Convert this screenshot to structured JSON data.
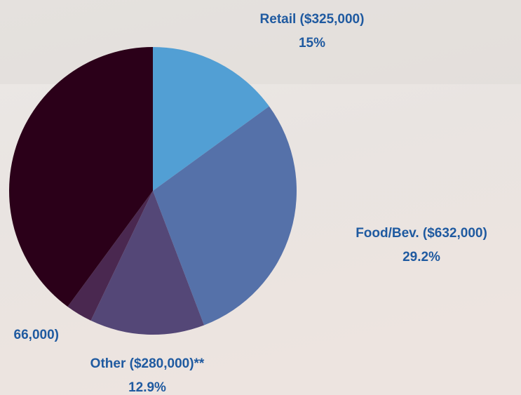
{
  "chart_data": {
    "type": "pie",
    "categories": [
      "Retail ($325,000)",
      "Food/Bev. ($632,000)",
      "Other ($280,000)**",
      "66,000)",
      null
    ],
    "values": [
      15,
      29.2,
      12.9,
      3,
      39.9
    ],
    "value_labels": [
      "15%",
      "29.2%",
      "12.9%",
      null,
      null
    ],
    "colors": [
      "#529fd4",
      "#5571a9",
      "#544777",
      "#4a2850",
      "#2b0019"
    ],
    "label_color": "#1f5aa0"
  }
}
